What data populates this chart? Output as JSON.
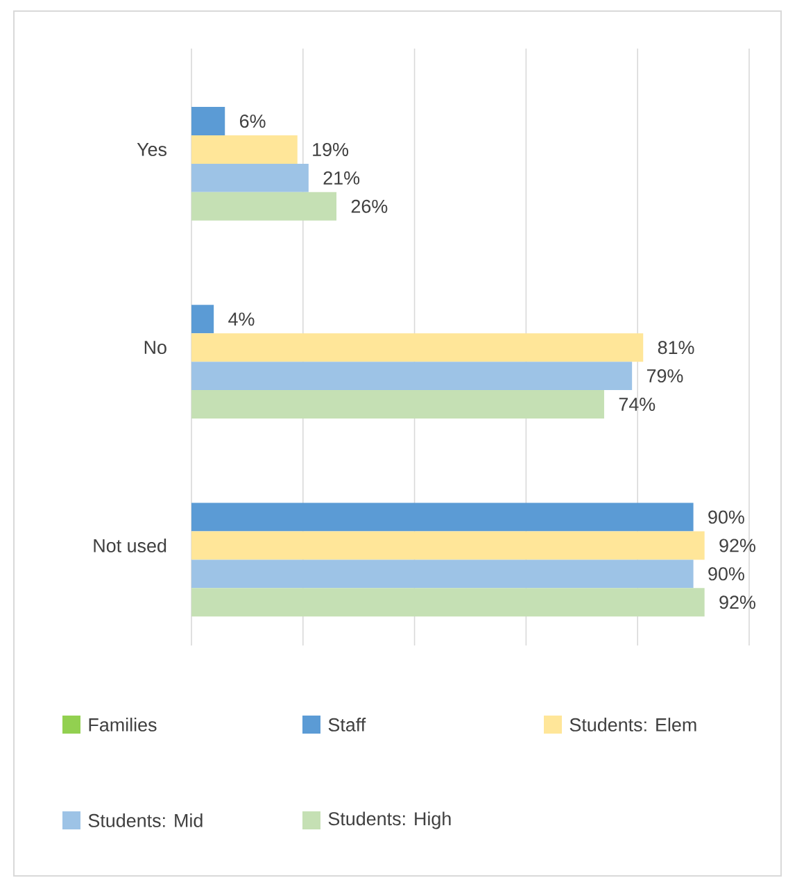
{
  "chart_data": {
    "type": "bar",
    "orientation": "horizontal",
    "categories": [
      "Yes",
      "No",
      "Not used"
    ],
    "series": [
      {
        "name": "Families",
        "color": "#92d050",
        "values": [
          null,
          null,
          null
        ]
      },
      {
        "name": "Staff",
        "color": "#5b9bd5",
        "values": [
          6,
          4,
          90
        ],
        "value_labels": [
          "6%",
          "4%",
          "90%"
        ]
      },
      {
        "name": "Students: Elem",
        "color": "#ffe699",
        "values": [
          19,
          81,
          92
        ],
        "value_labels": [
          "19%",
          "81%",
          "92%"
        ]
      },
      {
        "name": "Students: Mid",
        "color": "#9dc3e6",
        "values": [
          21,
          79,
          90
        ],
        "value_labels": [
          "21%",
          "79%",
          "90%"
        ]
      },
      {
        "name": "Students: High",
        "color": "#c5e0b4",
        "values": [
          26,
          74,
          92
        ],
        "value_labels": [
          "26%",
          "74%",
          "92%"
        ]
      }
    ],
    "xlim": [
      0,
      100
    ],
    "xticks": [
      {
        "value": 0,
        "label": null
      },
      {
        "value": 20,
        "label": null
      },
      {
        "value": 40,
        "label": null
      },
      {
        "value": 60,
        "label": null
      },
      {
        "value": 80,
        "label": null
      },
      {
        "value": 100,
        "label": null
      }
    ],
    "grid": "x",
    "legend": "bottom",
    "tick_labels": "y"
  }
}
